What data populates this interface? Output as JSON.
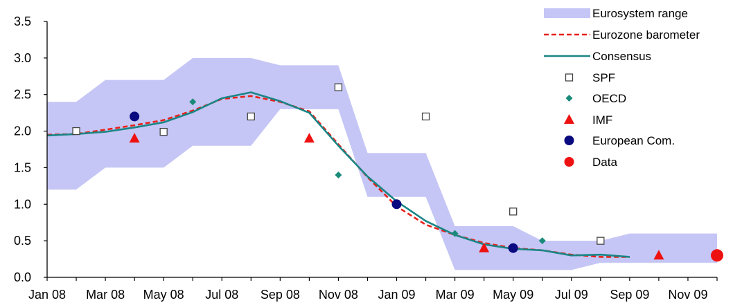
{
  "chart_data": {
    "type": "line",
    "x_ticks": [
      "Jan 08",
      "Mar 08",
      "May 08",
      "Jul 08",
      "Sep 08",
      "Nov 08",
      "Jan 09",
      "Mar 09",
      "May 09",
      "Jul 09",
      "Sep 09",
      "Nov 09"
    ],
    "ylim": [
      0.0,
      3.5
    ],
    "y_ticks": [
      "0.0",
      "0.5",
      "1.0",
      "1.5",
      "2.0",
      "2.5",
      "3.0",
      "3.5"
    ],
    "grid": false,
    "legend_position": "top-right",
    "legend": [
      {
        "label": "Eurosystem range",
        "marker": "band"
      },
      {
        "label": "Eurozone barometer",
        "marker": "dashed-line"
      },
      {
        "label": "Consensus",
        "marker": "line"
      },
      {
        "label": "SPF",
        "marker": "open-square"
      },
      {
        "label": "OECD",
        "marker": "diamond"
      },
      {
        "label": "IMF",
        "marker": "triangle"
      },
      {
        "label": "European Com.",
        "marker": "circle"
      },
      {
        "label": "Data",
        "marker": "circle"
      }
    ],
    "colors": {
      "range": "#c5c6f5",
      "barometer": "#e8201a",
      "consensus": "#1a8585",
      "spf": "#444444",
      "oecd": "#1a8a7a",
      "imf": "#ee1111",
      "ec": "#0a0a80",
      "data": "#ee1111"
    },
    "range_band": {
      "x": [
        0,
        1,
        2,
        3,
        4,
        5,
        6,
        7,
        8,
        9,
        10,
        11,
        12,
        13,
        14,
        15,
        16,
        17,
        18,
        19,
        20,
        21,
        22,
        23
      ],
      "upper": [
        2.4,
        2.4,
        2.7,
        2.7,
        2.7,
        3.0,
        3.0,
        3.0,
        2.9,
        2.9,
        2.9,
        1.7,
        1.7,
        1.7,
        0.7,
        0.7,
        0.7,
        0.5,
        0.5,
        0.5,
        0.6,
        0.6,
        0.6,
        0.6
      ],
      "lower": [
        1.2,
        1.2,
        1.5,
        1.5,
        1.5,
        1.8,
        1.8,
        1.8,
        2.3,
        2.3,
        2.3,
        1.1,
        1.1,
        1.1,
        0.1,
        0.1,
        0.1,
        0.1,
        0.1,
        0.2,
        0.2,
        0.2,
        0.2,
        0.2
      ]
    },
    "series": [
      {
        "name": "Eurozone barometer",
        "x": [
          0,
          1,
          2,
          3,
          4,
          5,
          6,
          7,
          8,
          9,
          10,
          11,
          12,
          13,
          14,
          15,
          16,
          17,
          18,
          19,
          20
        ],
        "values": [
          1.95,
          1.96,
          2.02,
          2.08,
          2.15,
          2.28,
          2.44,
          2.48,
          2.4,
          2.27,
          1.82,
          1.37,
          0.97,
          0.72,
          0.58,
          0.47,
          0.4,
          0.37,
          0.31,
          0.28,
          0.28
        ]
      },
      {
        "name": "Consensus",
        "x": [
          0,
          1,
          2,
          3,
          4,
          5,
          6,
          7,
          8,
          9,
          10,
          11,
          12,
          13,
          14,
          15,
          16,
          17,
          18,
          19,
          20
        ],
        "values": [
          1.94,
          1.96,
          1.99,
          2.05,
          2.12,
          2.26,
          2.45,
          2.53,
          2.41,
          2.25,
          1.8,
          1.38,
          1.04,
          0.77,
          0.58,
          0.45,
          0.39,
          0.37,
          0.3,
          0.31,
          0.28
        ]
      }
    ],
    "points": {
      "SPF": [
        [
          1,
          2.0
        ],
        [
          4,
          1.99
        ],
        [
          7,
          2.2
        ],
        [
          10,
          2.6
        ],
        [
          13,
          2.2
        ],
        [
          16,
          0.9
        ],
        [
          19,
          0.5
        ]
      ],
      "OECD": [
        [
          5,
          2.4
        ],
        [
          10,
          1.4
        ],
        [
          14,
          0.6
        ],
        [
          17,
          0.5
        ]
      ],
      "IMF": [
        [
          3,
          1.9
        ],
        [
          9,
          1.9
        ],
        [
          15,
          0.4
        ],
        [
          21,
          0.3
        ]
      ],
      "European Com.": [
        [
          3,
          2.2
        ],
        [
          12,
          1.0
        ],
        [
          16,
          0.4
        ]
      ],
      "Data": [
        [
          23,
          0.3
        ]
      ]
    }
  }
}
